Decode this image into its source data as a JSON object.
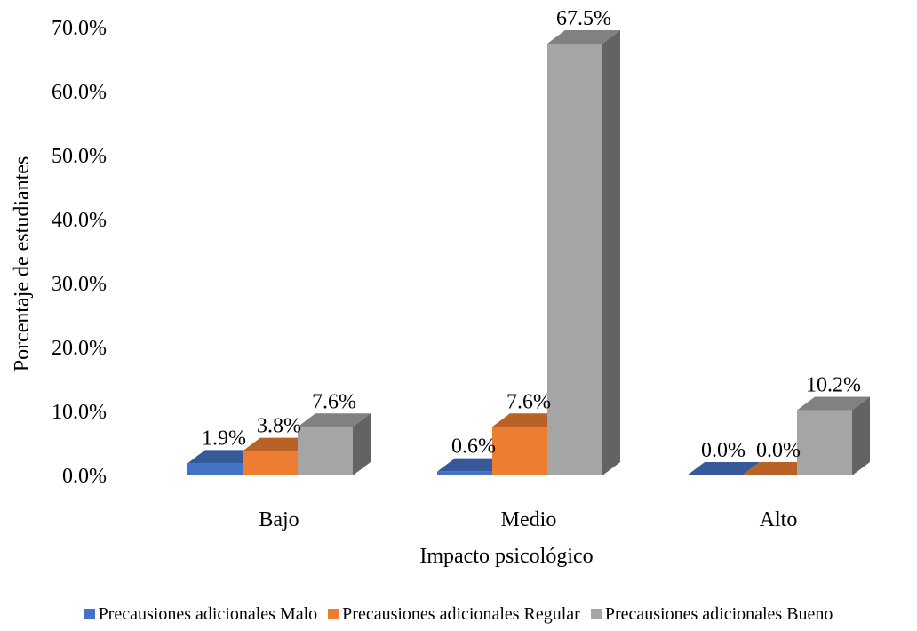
{
  "chart_data": {
    "type": "bar",
    "style": "3d-clustered-column",
    "categories": [
      "Bajo",
      "Medio",
      "Alto"
    ],
    "series": [
      {
        "name": "Precausiones adicionales Malo",
        "values": [
          1.9,
          0.6,
          0.0
        ],
        "labels": [
          "1.9%",
          "0.6%",
          "0.0%"
        ],
        "color": "#4472c4"
      },
      {
        "name": "Precausiones adicionales Regular",
        "values": [
          3.8,
          7.6,
          0.0
        ],
        "labels": [
          "3.8%",
          "7.6%",
          "0.0%"
        ],
        "color": "#ed7d31"
      },
      {
        "name": "Precausiones adicionales Bueno",
        "values": [
          7.6,
          67.5,
          10.2
        ],
        "labels": [
          "7.6%",
          "67.5%",
          "10.2%"
        ],
        "color": "#a5a5a5"
      }
    ],
    "xlabel": "Impacto psicológico",
    "ylabel": "Porcentaje de estudiantes",
    "ylim": [
      0,
      70
    ],
    "yticks": [
      0,
      10,
      20,
      30,
      40,
      50,
      60,
      70
    ],
    "ytick_labels": [
      "0.0%",
      "10.0%",
      "20.0%",
      "30.0%",
      "40.0%",
      "50.0%",
      "60.0%",
      "70.0%"
    ],
    "grid": false,
    "legend_position": "bottom"
  }
}
